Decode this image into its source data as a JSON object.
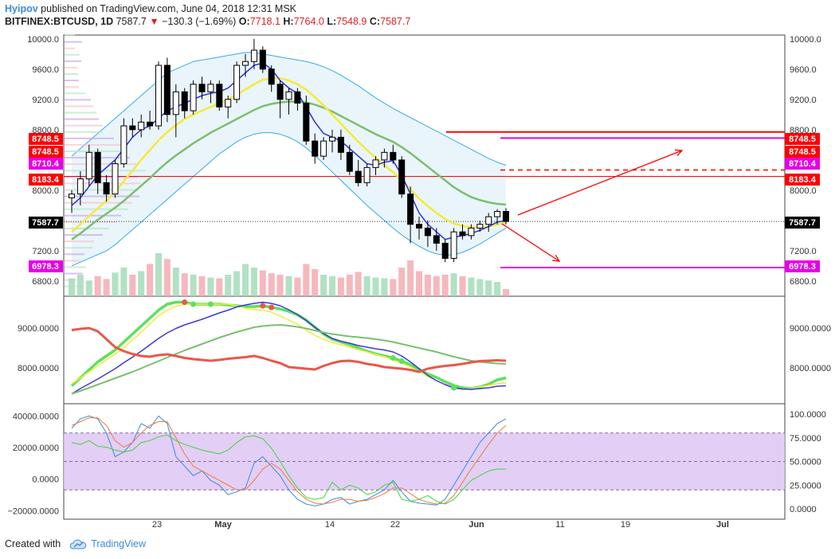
{
  "header": {
    "author": "Hyipov",
    "published": "published on TradingView.com, June 04, 2018 12:31 MSK",
    "symbol": "BITFINEX:BTCUSD, 1D",
    "last": "7587.7",
    "arrow": "▼",
    "change": "−130.3 (−1.69%)",
    "o_label": "O:",
    "o_val": "7718.1",
    "h_label": "H:",
    "h_val": "7764.0",
    "l_label": "L:",
    "l_val": "7548.9",
    "c_label": "C:",
    "c_val": "7587.7"
  },
  "footer": {
    "created_with": "Created with",
    "brand": "TradingView"
  },
  "colors": {
    "up": "#ffffff",
    "down": "#000000",
    "red": "#ff0000",
    "magenta": "#e600e6",
    "band": "#d7ecf7"
  },
  "chart_data": [
    {
      "type": "candlestick",
      "title": "BITFINEX:BTCUSD, 1D",
      "x_ticks": [
        "23",
        "May",
        "14",
        "22",
        "Jun",
        "11",
        "19",
        "Jul"
      ],
      "y_ticks": [
        "6800.0",
        "7200.0",
        "7600.0",
        "8000.0",
        "8400.0",
        "8800.0",
        "9200.0",
        "9600.0",
        "10000.0"
      ],
      "ylim": [
        6600,
        10050
      ],
      "price_labels_left": [
        "8748.5",
        "8748.5",
        "8710.4",
        "8183.4",
        "7587.7",
        "6978.3"
      ],
      "price_labels_right": [
        "8748.5",
        "8748.5",
        "8710.4",
        "8183.4",
        "7587.7",
        "6978.3"
      ],
      "candles": [
        [
          7900,
          8000,
          7700,
          7950
        ],
        [
          7950,
          8250,
          7800,
          8150
        ],
        [
          8150,
          8600,
          8050,
          8500
        ],
        [
          8500,
          8550,
          7950,
          8100
        ],
        [
          8100,
          8200,
          7850,
          7950
        ],
        [
          7950,
          8400,
          7900,
          8350
        ],
        [
          8350,
          8950,
          8300,
          8850
        ],
        [
          8850,
          8950,
          8700,
          8800
        ],
        [
          8800,
          9000,
          8700,
          8900
        ],
        [
          8900,
          9050,
          8800,
          8850
        ],
        [
          8850,
          9700,
          8800,
          9650
        ],
        [
          9650,
          9750,
          8900,
          9000
        ],
        [
          9000,
          9400,
          8700,
          9300
        ],
        [
          9300,
          9350,
          8950,
          9050
        ],
        [
          9050,
          9450,
          9000,
          9400
        ],
        [
          9400,
          9500,
          9200,
          9300
        ],
        [
          9300,
          9450,
          9150,
          9400
        ],
        [
          9400,
          9450,
          9050,
          9100
        ],
        [
          9100,
          9250,
          8950,
          9200
        ],
        [
          9200,
          9700,
          9150,
          9650
        ],
        [
          9650,
          9800,
          9500,
          9700
        ],
        [
          9700,
          10000,
          9600,
          9850
        ],
        [
          9850,
          9900,
          9550,
          9600
        ],
        [
          9600,
          9650,
          9300,
          9400
        ],
        [
          9400,
          9450,
          8950,
          9200
        ],
        [
          9200,
          9350,
          9000,
          9300
        ],
        [
          9300,
          9350,
          9050,
          9150
        ],
        [
          9150,
          9250,
          8600,
          8650
        ],
        [
          8650,
          8750,
          8350,
          8450
        ],
        [
          8450,
          8700,
          8400,
          8650
        ],
        [
          8650,
          8800,
          8500,
          8700
        ],
        [
          8700,
          8800,
          8400,
          8500
        ],
        [
          8500,
          8600,
          8200,
          8250
        ],
        [
          8250,
          8400,
          8050,
          8100
        ],
        [
          8100,
          8350,
          8050,
          8300
        ],
        [
          8300,
          8450,
          8200,
          8400
        ],
        [
          8400,
          8550,
          8300,
          8500
        ],
        [
          8500,
          8600,
          8350,
          8400
        ],
        [
          8400,
          8450,
          7900,
          7950
        ],
        [
          7950,
          8050,
          7300,
          7550
        ],
        [
          7550,
          7650,
          7350,
          7500
        ],
        [
          7500,
          7600,
          7250,
          7400
        ],
        [
          7400,
          7500,
          7200,
          7300
        ],
        [
          7300,
          7350,
          7050,
          7100
        ],
        [
          7100,
          7500,
          7050,
          7450
        ],
        [
          7450,
          7550,
          7350,
          7400
        ],
        [
          7400,
          7550,
          7350,
          7500
        ],
        [
          7500,
          7600,
          7450,
          7550
        ],
        [
          7550,
          7700,
          7450,
          7650
        ],
        [
          7650,
          7750,
          7550,
          7720
        ],
        [
          7720,
          7764,
          7549,
          7588
        ]
      ],
      "volume": [
        25,
        30,
        22,
        28,
        24,
        33,
        40,
        30,
        35,
        45,
        60,
        52,
        40,
        32,
        30,
        28,
        26,
        25,
        30,
        35,
        45,
        40,
        36,
        32,
        30,
        28,
        26,
        45,
        38,
        30,
        28,
        26,
        30,
        34,
        28,
        26,
        25,
        24,
        40,
        50,
        35,
        30,
        28,
        30,
        32,
        28,
        26,
        24,
        22,
        20,
        10
      ],
      "ma_yellow": [
        7450,
        7550,
        7660,
        7760,
        7860,
        7980,
        8120,
        8260,
        8400,
        8530,
        8660,
        8770,
        8860,
        8940,
        9000,
        9050,
        9100,
        9150,
        9200,
        9260,
        9330,
        9400,
        9460,
        9480,
        9480,
        9450,
        9400,
        9330,
        9230,
        9120,
        9000,
        8880,
        8760,
        8640,
        8530,
        8430,
        8330,
        8240,
        8130,
        8010,
        7890,
        7790,
        7700,
        7620,
        7560,
        7530,
        7510,
        7510,
        7520,
        7550,
        7570
      ],
      "ma_green": [
        7350,
        7430,
        7520,
        7610,
        7690,
        7770,
        7860,
        7960,
        8060,
        8160,
        8270,
        8370,
        8460,
        8540,
        8620,
        8690,
        8760,
        8820,
        8880,
        8940,
        9000,
        9060,
        9110,
        9140,
        9160,
        9170,
        9170,
        9160,
        9130,
        9090,
        9040,
        8980,
        8920,
        8860,
        8800,
        8740,
        8690,
        8640,
        8570,
        8490,
        8400,
        8310,
        8220,
        8130,
        8040,
        7970,
        7910,
        7870,
        7840,
        7820,
        7810
      ],
      "ma_blue": [
        7800,
        7900,
        8050,
        8200,
        8300,
        8400,
        8550,
        8700,
        8800,
        8850,
        8950,
        9050,
        9100,
        9150,
        9200,
        9250,
        9280,
        9300,
        9350,
        9450,
        9550,
        9650,
        9680,
        9600,
        9450,
        9350,
        9280,
        9100,
        8900,
        8750,
        8700,
        8650,
        8550,
        8450,
        8350,
        8330,
        8370,
        8390,
        8200,
        7950,
        7700,
        7550,
        7450,
        7350,
        7380,
        7400,
        7430,
        7470,
        7520,
        7580,
        7600
      ],
      "bb_upper": [
        8450,
        8550,
        8650,
        8750,
        8850,
        8950,
        9050,
        9150,
        9250,
        9350,
        9450,
        9550,
        9600,
        9650,
        9700,
        9720,
        9740,
        9760,
        9780,
        9800,
        9820,
        9820,
        9800,
        9780,
        9760,
        9740,
        9720,
        9700,
        9670,
        9630,
        9580,
        9520,
        9450,
        9380,
        9300,
        9220,
        9150,
        9080,
        9020,
        8960,
        8900,
        8840,
        8780,
        8720,
        8660,
        8600,
        8540,
        8480,
        8420,
        8370,
        8330
      ],
      "bb_lower": [
        7000,
        7050,
        7100,
        7150,
        7200,
        7280,
        7380,
        7480,
        7580,
        7680,
        7780,
        7880,
        7980,
        8080,
        8180,
        8280,
        8380,
        8480,
        8560,
        8640,
        8700,
        8740,
        8760,
        8760,
        8740,
        8700,
        8640,
        8560,
        8460,
        8350,
        8240,
        8130,
        8020,
        7910,
        7800,
        7700,
        7600,
        7500,
        7410,
        7330,
        7260,
        7200,
        7160,
        7140,
        7150,
        7180,
        7230,
        7290,
        7360,
        7430,
        7500
      ]
    },
    {
      "type": "line",
      "y_ticks_left": [
        "8000.0000",
        "9000.0000"
      ],
      "y_ticks_right": [
        "8000.0000",
        "9000.0000"
      ],
      "ylim": [
        7100,
        9800
      ],
      "series": [
        {
          "values": [
            7550,
            7750,
            7950,
            8150,
            8300,
            8450,
            8650,
            8850,
            9050,
            9250,
            9450,
            9600,
            9650,
            9650,
            9600,
            9600,
            9600,
            9600,
            9580,
            9560,
            9540,
            9540,
            9560,
            9520,
            9480,
            9420,
            9330,
            9200,
            9020,
            8850,
            8720,
            8650,
            8580,
            8500,
            8420,
            8350,
            8300,
            8250,
            8170,
            8080,
            7960,
            7850,
            7760,
            7650,
            7560,
            7500,
            7480,
            7520,
            7590,
            7700,
            7750
          ]
        },
        {
          "values": [
            7600,
            7750,
            7900,
            8050,
            8200,
            8350,
            8500,
            8700,
            8900,
            9100,
            9300,
            9450,
            9550,
            9600,
            9600,
            9600,
            9600,
            9600,
            9600,
            9560,
            9500,
            9460,
            9450,
            9400,
            9300,
            9200,
            9100,
            8950,
            8820,
            8720,
            8640,
            8580,
            8520,
            8460,
            8400,
            8340,
            8280,
            8200,
            8120,
            8020,
            7900,
            7780,
            7680,
            7580,
            7500,
            7460,
            7480,
            7520,
            7560,
            7600,
            7620
          ]
        },
        {
          "values": [
            7350,
            7480,
            7600,
            7720,
            7850,
            7980,
            8130,
            8270,
            8420,
            8580,
            8740,
            8880,
            8990,
            9080,
            9150,
            9220,
            9300,
            9380,
            9450,
            9530,
            9580,
            9620,
            9650,
            9620,
            9560,
            9460,
            9340,
            9190,
            9020,
            8860,
            8740,
            8670,
            8620,
            8560,
            8520,
            8480,
            8450,
            8400,
            8300,
            8150,
            7980,
            7810,
            7680,
            7580,
            7500,
            7470,
            7460,
            7480,
            7500,
            7540,
            7550
          ]
        },
        {
          "values": [
            7350,
            7420,
            7500,
            7580,
            7660,
            7740,
            7820,
            7900,
            7990,
            8080,
            8170,
            8260,
            8350,
            8440,
            8520,
            8600,
            8680,
            8760,
            8830,
            8900,
            8960,
            9020,
            9050,
            9070,
            9080,
            9060,
            9030,
            8990,
            8940,
            8890,
            8850,
            8820,
            8790,
            8770,
            8750,
            8720,
            8690,
            8650,
            8600,
            8550,
            8500,
            8450,
            8400,
            8340,
            8280,
            8230,
            8180,
            8150,
            8130,
            8110,
            8100
          ]
        },
        {
          "values": [
            8950,
            8980,
            9000,
            8920,
            8720,
            8520,
            8420,
            8350,
            8300,
            8280,
            8320,
            8340,
            8300,
            8250,
            8220,
            8200,
            8180,
            8200,
            8230,
            8250,
            8270,
            8300,
            8250,
            8180,
            8120,
            8020,
            8000,
            7980,
            7960,
            8050,
            8120,
            8170,
            8180,
            8150,
            8100,
            8070,
            8020,
            8000,
            7980,
            7950,
            7900,
            7980,
            8020,
            8050,
            8070,
            8100,
            8140,
            8170,
            8180,
            8190,
            8180
          ]
        }
      ]
    },
    {
      "type": "line",
      "y_ticks_left": [
        "−20000.0000",
        "0.0000",
        "20000.0000",
        "40000.0000"
      ],
      "y_ticks_right": [
        "0.0000",
        "25.0000",
        "50.0000",
        "75.0000",
        "100.0000"
      ],
      "ylim": [
        0,
        100
      ],
      "series": [
        {
          "values": [
            85,
            95,
            98,
            95,
            80,
            55,
            60,
            70,
            90,
            85,
            98,
            90,
            55,
            45,
            35,
            40,
            30,
            25,
            15,
            18,
            22,
            48,
            55,
            45,
            35,
            20,
            10,
            5,
            3,
            5,
            10,
            12,
            5,
            8,
            10,
            15,
            20,
            30,
            18,
            8,
            6,
            5,
            4,
            10,
            25,
            40,
            55,
            70,
            80,
            90,
            95
          ]
        },
        {
          "values": [
            88,
            92,
            96,
            96,
            88,
            72,
            65,
            70,
            80,
            88,
            92,
            92,
            75,
            58,
            45,
            40,
            35,
            30,
            25,
            20,
            20,
            30,
            42,
            48,
            42,
            30,
            18,
            10,
            6,
            5,
            7,
            10,
            10,
            8,
            9,
            12,
            16,
            22,
            22,
            16,
            10,
            7,
            5,
            6,
            14,
            28,
            42,
            55,
            68,
            80,
            88
          ]
        },
        {
          "values": [
            70,
            68,
            72,
            66,
            65,
            62,
            60,
            62,
            70,
            72,
            76,
            78,
            72,
            68,
            65,
            62,
            60,
            58,
            62,
            70,
            76,
            77,
            74,
            64,
            50,
            35,
            22,
            12,
            10,
            12,
            28,
            20,
            25,
            22,
            15,
            18,
            25,
            28,
            10,
            8,
            10,
            14,
            8,
            5,
            10,
            20,
            30,
            35,
            40,
            42,
            42
          ]
        }
      ]
    }
  ]
}
